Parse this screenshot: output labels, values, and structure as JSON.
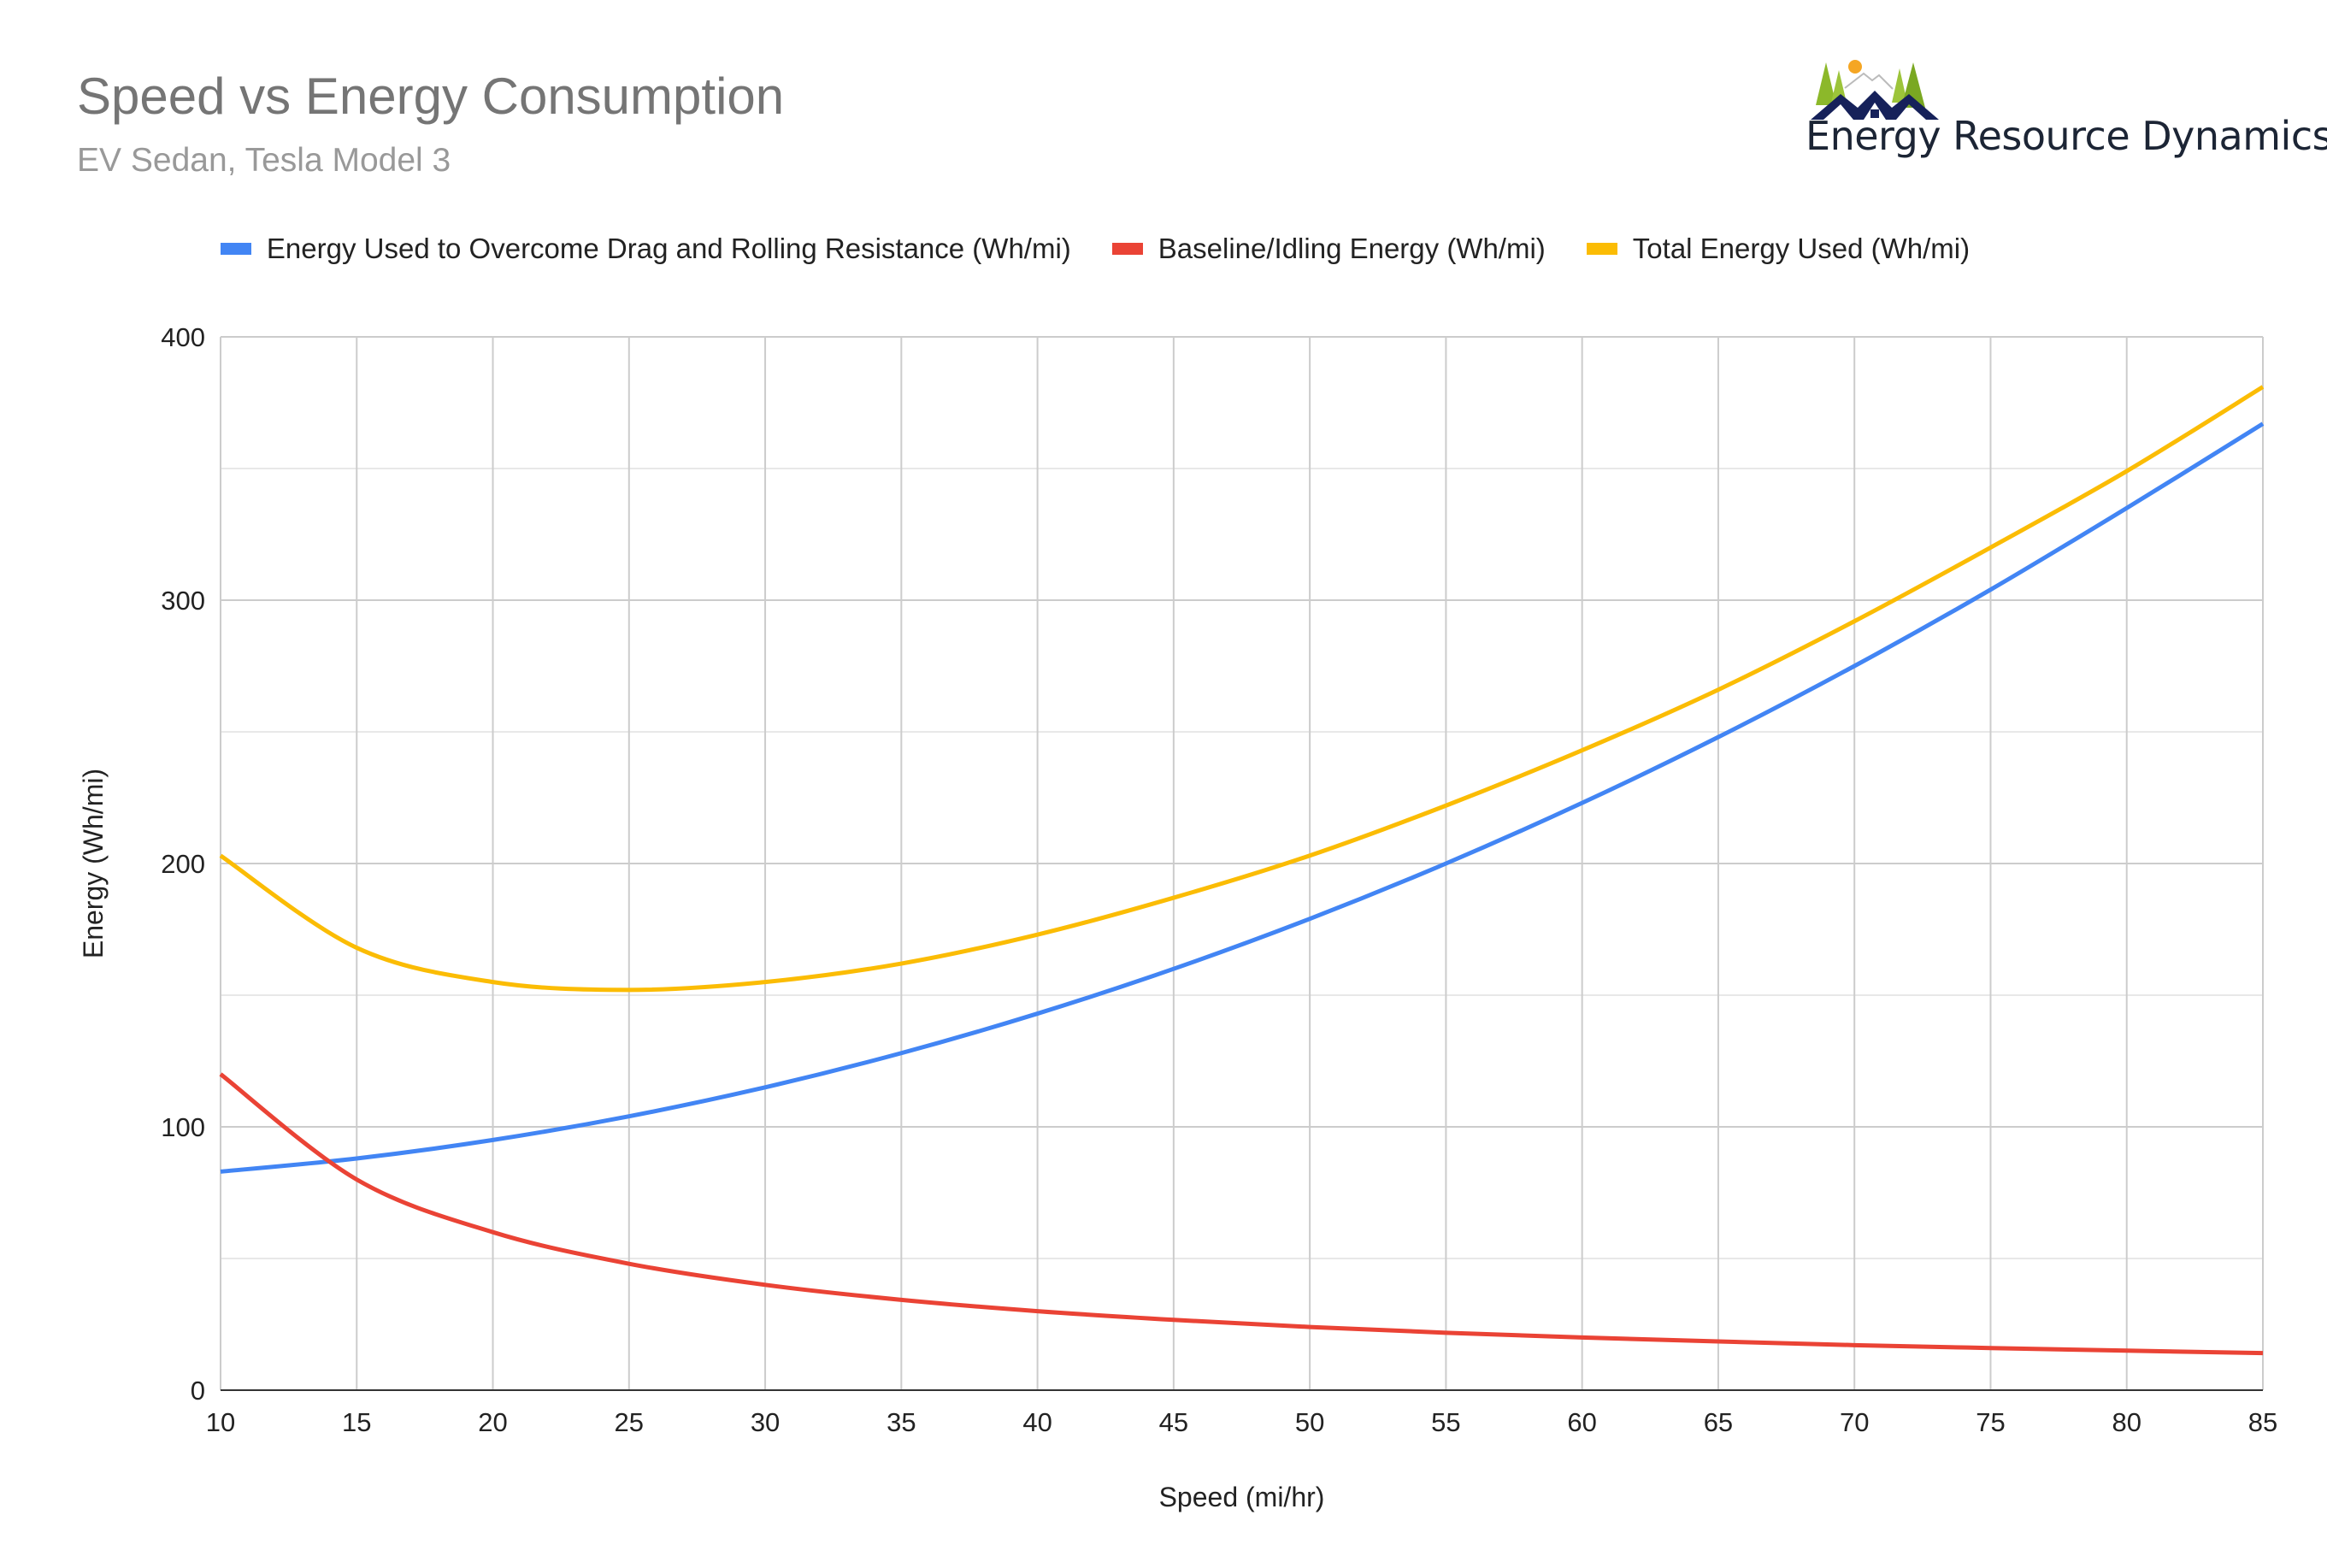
{
  "header": {
    "title": "Speed vs Energy Consumption",
    "subtitle": "EV Sedan, Tesla Model 3"
  },
  "brand": {
    "name": "Energy Resource Dynamics"
  },
  "chart_data": {
    "type": "line",
    "title": "Speed vs Energy Consumption",
    "subtitle": "EV Sedan, Tesla Model 3",
    "xlabel": "Speed (mi/hr)",
    "ylabel": "Energy (Wh/mi)",
    "xlim": [
      10,
      85
    ],
    "ylim": [
      0,
      400
    ],
    "xticks": [
      10,
      15,
      20,
      25,
      30,
      35,
      40,
      45,
      50,
      55,
      60,
      65,
      70,
      75,
      80,
      85
    ],
    "yticks": [
      0,
      100,
      200,
      300,
      400
    ],
    "grid": true,
    "legend": "top",
    "x": [
      10,
      15,
      20,
      25,
      30,
      35,
      40,
      45,
      50,
      55,
      60,
      65,
      70,
      75,
      80,
      85
    ],
    "series": [
      {
        "name": "Energy Used to Overcome Drag and Rolling Resistance (Wh/mi)",
        "color": "#4285f4",
        "values": [
          83,
          88,
          95,
          104,
          115,
          128,
          143,
          160,
          179,
          200,
          223,
          248,
          275,
          304,
          335,
          367
        ]
      },
      {
        "name": "Baseline/Idling Energy (Wh/mi)",
        "color": "#ea4335",
        "values": [
          120,
          80,
          60,
          48,
          40,
          34.3,
          30,
          26.7,
          24,
          21.8,
          20,
          18.5,
          17.1,
          16,
          15,
          14.1
        ]
      },
      {
        "name": "Total Energy Used (Wh/mi)",
        "color": "#fbbc04",
        "values": [
          203,
          168,
          155,
          152,
          155,
          162,
          173,
          187,
          203,
          222,
          243,
          266,
          292,
          320,
          349,
          381
        ]
      }
    ]
  }
}
